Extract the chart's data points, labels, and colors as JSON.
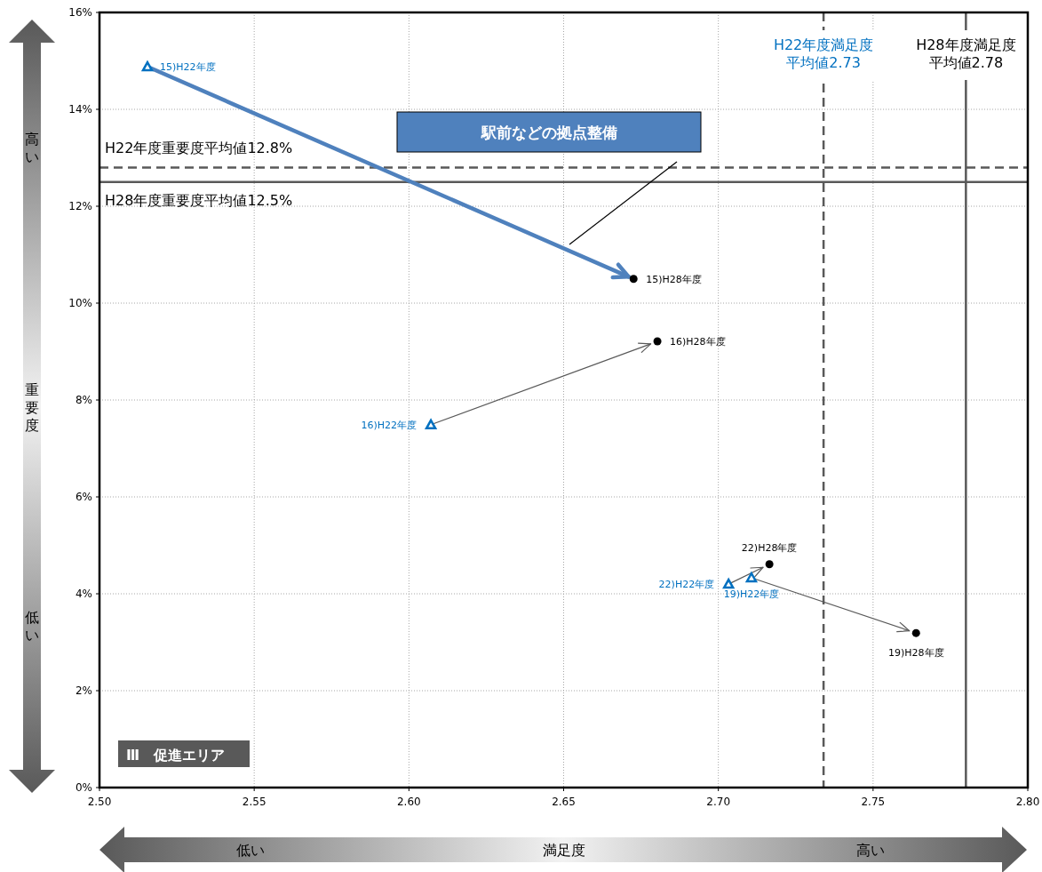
{
  "chart_data": {
    "type": "scatter",
    "xlabel": "満足度",
    "ylabel": "重要度",
    "xlim": [
      2.5,
      2.8
    ],
    "ylim": [
      0,
      16
    ],
    "grid": true,
    "xticks": [
      {
        "value": 2.5,
        "label": "2.50"
      },
      {
        "value": 2.55,
        "label": "2.55"
      },
      {
        "value": 2.6,
        "label": "2.60"
      },
      {
        "value": 2.65,
        "label": "2.65"
      },
      {
        "value": 2.7,
        "label": "2.70"
      },
      {
        "value": 2.75,
        "label": "2.75"
      },
      {
        "value": 2.8,
        "label": "2.80"
      }
    ],
    "yticks": [
      {
        "value": 0,
        "label": "0%"
      },
      {
        "value": 2,
        "label": "2%"
      },
      {
        "value": 4,
        "label": "4%"
      },
      {
        "value": 6,
        "label": "6%"
      },
      {
        "value": 8,
        "label": "8%"
      },
      {
        "value": 10,
        "label": "10%"
      },
      {
        "value": 12,
        "label": "12%"
      },
      {
        "value": 14,
        "label": "14%"
      },
      {
        "value": 16,
        "label": "16%"
      }
    ],
    "series": [
      {
        "color": "#0070c0",
        "marker": "triangle",
        "x": [
          2.5155,
          2.6071,
          2.7033,
          2.7107
        ],
        "values": [
          14.88,
          7.49,
          4.2,
          4.33
        ],
        "value_labels": [
          "15)H22年度",
          "16)H22年度",
          "22)H22年度",
          "19)H22年度"
        ]
      },
      {
        "color": "#000000",
        "marker": "circle",
        "x": [
          2.6726,
          2.6803,
          2.7165,
          2.7639
        ],
        "values": [
          10.5,
          9.21,
          4.61,
          3.19
        ],
        "value_labels": [
          "15)H28年度",
          "16)H28年度",
          "22)H28年度",
          "19)H28年度"
        ]
      }
    ],
    "ref_lines": [
      {
        "axis": "y",
        "value": 12.8,
        "label": "H22年度重要度平均値12.8%",
        "color": "#595959",
        "line_style": "dashed"
      },
      {
        "axis": "y",
        "value": 12.5,
        "label": "H28年度重要度平均値12.5%",
        "color": "#595959",
        "line_style": "solid"
      },
      {
        "axis": "x",
        "value": 2.734,
        "label": "H22年度満足度平均値2.73",
        "color": "#595959",
        "line_style": "dashed"
      },
      {
        "axis": "x",
        "value": 2.78,
        "label": "H28年度満足度平均値2.78",
        "color": "#595959",
        "line_style": "solid"
      }
    ],
    "annotations": [
      "駅前などの拠点整備",
      "Ⅲ　促進エリア",
      "高い",
      "低い",
      "低い",
      "高い"
    ]
  }
}
